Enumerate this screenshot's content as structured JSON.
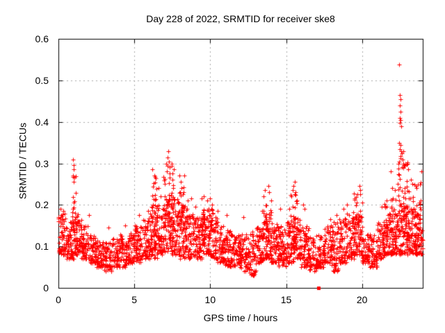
{
  "chart_data": {
    "type": "scatter",
    "title": "Day 228 of 2022, SRMTID for receiver ske8",
    "xlabel": "GPS time / hours",
    "ylabel": "SRMTID / TECUs",
    "xlim": [
      0,
      24
    ],
    "ylim": [
      0,
      0.6
    ],
    "xtick_values": [
      0,
      5,
      10,
      15,
      20
    ],
    "xtick_labels": [
      "0",
      "5",
      "10",
      "15",
      "20"
    ],
    "ytick_values": [
      0,
      0.1,
      0.2,
      0.3,
      0.4,
      0.5,
      0.6
    ],
    "ytick_labels": [
      "0",
      "0.1",
      "0.2",
      "0.3",
      "0.4",
      "0.5",
      "0.6"
    ],
    "grid": true,
    "legend": "none",
    "colors": {
      "marker": "#ff0000",
      "grid": "#a8a8a8",
      "axis": "#000000",
      "background": "#ffffff",
      "text": "#000000"
    },
    "marker": {
      "shape": "plus",
      "size": 7
    },
    "seed": 123456,
    "baseline_bands_note": "each band = [start_hour, n_points, y_min, y_max] over a 0.5 h window; dense baseline scatter",
    "baseline_bands": [
      [
        0.0,
        60,
        0.08,
        0.18
      ],
      [
        0.5,
        60,
        0.07,
        0.16
      ],
      [
        1.0,
        60,
        0.08,
        0.18
      ],
      [
        1.5,
        60,
        0.07,
        0.15
      ],
      [
        2.0,
        55,
        0.06,
        0.13
      ],
      [
        2.5,
        50,
        0.05,
        0.12
      ],
      [
        3.0,
        50,
        0.04,
        0.11
      ],
      [
        3.5,
        50,
        0.05,
        0.12
      ],
      [
        4.0,
        55,
        0.05,
        0.13
      ],
      [
        4.5,
        55,
        0.06,
        0.14
      ],
      [
        5.0,
        60,
        0.06,
        0.15
      ],
      [
        5.5,
        60,
        0.07,
        0.17
      ],
      [
        6.0,
        65,
        0.07,
        0.19
      ],
      [
        6.5,
        65,
        0.08,
        0.2
      ],
      [
        7.0,
        65,
        0.08,
        0.22
      ],
      [
        7.5,
        65,
        0.08,
        0.22
      ],
      [
        8.0,
        65,
        0.07,
        0.2
      ],
      [
        8.5,
        60,
        0.07,
        0.18
      ],
      [
        9.0,
        60,
        0.07,
        0.17
      ],
      [
        9.5,
        65,
        0.08,
        0.19
      ],
      [
        10.0,
        65,
        0.07,
        0.17
      ],
      [
        10.5,
        60,
        0.06,
        0.15
      ],
      [
        11.0,
        55,
        0.05,
        0.14
      ],
      [
        11.5,
        55,
        0.05,
        0.13
      ],
      [
        12.0,
        55,
        0.04,
        0.13
      ],
      [
        12.5,
        60,
        0.03,
        0.14
      ],
      [
        13.0,
        60,
        0.06,
        0.15
      ],
      [
        13.5,
        60,
        0.07,
        0.18
      ],
      [
        14.0,
        60,
        0.06,
        0.16
      ],
      [
        14.5,
        60,
        0.05,
        0.15
      ],
      [
        15.0,
        60,
        0.06,
        0.16
      ],
      [
        15.5,
        60,
        0.07,
        0.17
      ],
      [
        16.0,
        60,
        0.05,
        0.15
      ],
      [
        16.5,
        55,
        0.04,
        0.13
      ],
      [
        17.0,
        55,
        0.05,
        0.13
      ],
      [
        17.5,
        55,
        0.06,
        0.15
      ],
      [
        18.0,
        60,
        0.04,
        0.16
      ],
      [
        18.5,
        60,
        0.06,
        0.17
      ],
      [
        19.0,
        60,
        0.07,
        0.18
      ],
      [
        19.5,
        60,
        0.08,
        0.18
      ],
      [
        20.0,
        55,
        0.06,
        0.13
      ],
      [
        20.5,
        55,
        0.05,
        0.13
      ],
      [
        21.0,
        60,
        0.07,
        0.16
      ],
      [
        21.5,
        60,
        0.08,
        0.18
      ],
      [
        22.0,
        60,
        0.08,
        0.18
      ],
      [
        22.5,
        65,
        0.08,
        0.2
      ],
      [
        23.0,
        60,
        0.08,
        0.2
      ],
      [
        23.5,
        60,
        0.08,
        0.18
      ]
    ],
    "clusters_note": "activity bursts = [x_start, x_end, y_min, y_max, n_points]",
    "clusters": [
      [
        0.9,
        1.15,
        0.14,
        0.27,
        22
      ],
      [
        6.15,
        6.5,
        0.14,
        0.27,
        26
      ],
      [
        6.9,
        7.65,
        0.14,
        0.3,
        40
      ],
      [
        7.9,
        8.35,
        0.13,
        0.25,
        22
      ],
      [
        9.4,
        10.2,
        0.12,
        0.21,
        26
      ],
      [
        13.4,
        14.1,
        0.12,
        0.22,
        20
      ],
      [
        15.2,
        15.75,
        0.13,
        0.24,
        18
      ],
      [
        19.4,
        20.0,
        0.13,
        0.23,
        18
      ],
      [
        21.4,
        22.3,
        0.11,
        0.22,
        24
      ],
      [
        22.35,
        23.0,
        0.14,
        0.33,
        40
      ],
      [
        23.0,
        23.92,
        0.1,
        0.27,
        36
      ]
    ],
    "peak_points_note": "distinct extreme points read from the plot [hour, SRMTID]",
    "peak_points": [
      [
        0.15,
        0.19
      ],
      [
        0.3,
        0.185
      ],
      [
        0.95,
        0.31
      ],
      [
        1.0,
        0.295
      ],
      [
        1.02,
        0.285
      ],
      [
        0.97,
        0.27
      ],
      [
        2.0,
        0.175
      ],
      [
        3.3,
        0.145
      ],
      [
        4.4,
        0.15
      ],
      [
        5.3,
        0.175
      ],
      [
        5.9,
        0.185
      ],
      [
        6.2,
        0.285
      ],
      [
        6.3,
        0.27
      ],
      [
        6.6,
        0.24
      ],
      [
        6.75,
        0.22
      ],
      [
        7.25,
        0.33
      ],
      [
        7.2,
        0.315
      ],
      [
        7.3,
        0.305
      ],
      [
        7.1,
        0.3
      ],
      [
        7.45,
        0.3
      ],
      [
        7.35,
        0.29
      ],
      [
        7.15,
        0.28
      ],
      [
        7.5,
        0.26
      ],
      [
        7.0,
        0.25
      ],
      [
        7.55,
        0.24
      ],
      [
        7.95,
        0.27
      ],
      [
        8.3,
        0.27
      ],
      [
        8.05,
        0.255
      ],
      [
        8.1,
        0.24
      ],
      [
        8.2,
        0.225
      ],
      [
        8.5,
        0.21
      ],
      [
        8.75,
        0.215
      ],
      [
        9.0,
        0.195
      ],
      [
        9.45,
        0.215
      ],
      [
        9.55,
        0.22
      ],
      [
        9.8,
        0.21
      ],
      [
        10.0,
        0.215
      ],
      [
        10.1,
        0.2
      ],
      [
        10.5,
        0.185
      ],
      [
        11.1,
        0.175
      ],
      [
        12.2,
        0.17
      ],
      [
        13.5,
        0.22
      ],
      [
        13.6,
        0.235
      ],
      [
        13.85,
        0.245
      ],
      [
        13.9,
        0.23
      ],
      [
        14.0,
        0.21
      ],
      [
        14.6,
        0.19
      ],
      [
        15.35,
        0.22
      ],
      [
        15.5,
        0.245
      ],
      [
        15.55,
        0.255
      ],
      [
        15.6,
        0.23
      ],
      [
        15.7,
        0.21
      ],
      [
        16.1,
        0.2
      ],
      [
        16.2,
        0.19
      ],
      [
        17.9,
        0.165
      ],
      [
        18.3,
        0.175
      ],
      [
        18.8,
        0.19
      ],
      [
        19.0,
        0.2
      ],
      [
        19.5,
        0.215
      ],
      [
        19.7,
        0.225
      ],
      [
        19.85,
        0.245
      ],
      [
        19.9,
        0.235
      ],
      [
        20.0,
        0.205
      ],
      [
        21.3,
        0.195
      ],
      [
        21.6,
        0.21
      ],
      [
        21.9,
        0.28
      ],
      [
        22.0,
        0.24
      ],
      [
        22.15,
        0.235
      ],
      [
        22.45,
        0.538
      ],
      [
        22.5,
        0.465
      ],
      [
        22.55,
        0.455
      ],
      [
        22.5,
        0.44
      ],
      [
        22.52,
        0.425
      ],
      [
        22.48,
        0.41
      ],
      [
        22.55,
        0.405
      ],
      [
        22.5,
        0.398
      ],
      [
        22.58,
        0.39
      ],
      [
        22.45,
        0.35
      ],
      [
        22.55,
        0.345
      ],
      [
        22.5,
        0.335
      ],
      [
        22.6,
        0.33
      ],
      [
        22.62,
        0.325
      ],
      [
        22.55,
        0.318
      ],
      [
        22.65,
        0.31
      ],
      [
        22.4,
        0.3
      ],
      [
        22.7,
        0.3
      ],
      [
        22.75,
        0.295
      ],
      [
        22.85,
        0.3
      ],
      [
        23.0,
        0.3
      ],
      [
        23.05,
        0.285
      ],
      [
        23.2,
        0.26
      ],
      [
        23.3,
        0.25
      ],
      [
        23.6,
        0.24
      ],
      [
        23.9,
        0.28
      ],
      [
        23.85,
        0.21
      ]
    ],
    "special_marker": {
      "shape": "filled-square",
      "x": 17.15,
      "y": 0,
      "size": 5
    }
  }
}
